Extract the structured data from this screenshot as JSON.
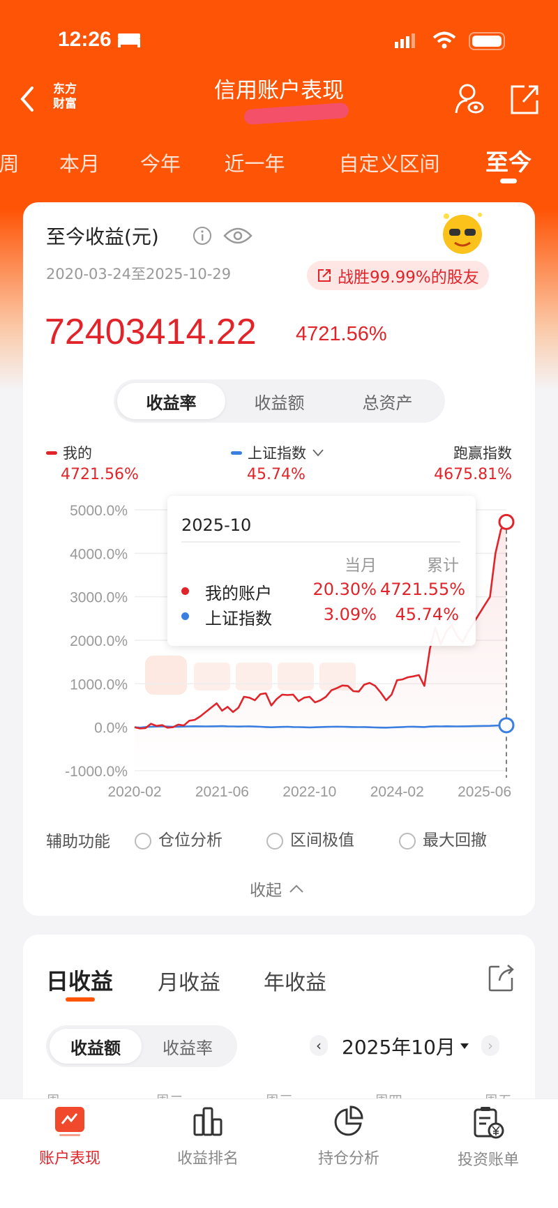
{
  "status_bar": {
    "time": "12:26"
  },
  "header": {
    "title": "信用账户表现",
    "logo_text": "东方财富"
  },
  "period_tabs": [
    {
      "label": "周"
    },
    {
      "label": "本月"
    },
    {
      "label": "今年"
    },
    {
      "label": "近一年"
    },
    {
      "label": "自定义区间"
    },
    {
      "label": "至今",
      "active": true
    }
  ],
  "summary": {
    "title": "至今收益(元)",
    "date_range": "2020-03-24至2025-10-29",
    "badge": "战胜99.99%的股友",
    "amount": "72403414.22",
    "rate": "4721.56%"
  },
  "chart_mode_tabs": [
    {
      "label": "收益率",
      "active": true
    },
    {
      "label": "收益额"
    },
    {
      "label": "总资产"
    }
  ],
  "legend": {
    "mine_label": "我的",
    "mine_value": "4721.56%",
    "index_label": "上证指数",
    "index_value": "45.74%",
    "beat_label": "跑赢指数",
    "beat_value": "4675.81%"
  },
  "tooltip": {
    "date": "2025-10",
    "col_month": "当月",
    "col_total": "累计",
    "rows": [
      {
        "name": "我的账户",
        "month": "20.30%",
        "total": "4721.55%",
        "color": "#e0242a"
      },
      {
        "name": "上证指数",
        "month": "3.09%",
        "total": "45.74%",
        "color": "#3a7fe0"
      }
    ]
  },
  "chart_data": {
    "type": "line",
    "ylim": [
      -1000,
      5000
    ],
    "y_ticks": [
      "5000.0%",
      "4000.0%",
      "3000.0%",
      "2000.0%",
      "1000.0%",
      "0.0%",
      "-1000.0%"
    ],
    "y_tick_values": [
      5000,
      4000,
      3000,
      2000,
      1000,
      0,
      -1000
    ],
    "x_ticks": [
      "2020-02",
      "2021-06",
      "2022-10",
      "2024-02",
      "2025-06"
    ],
    "x": [
      "2020-02",
      "2020-03",
      "2020-04",
      "2020-05",
      "2020-06",
      "2020-07",
      "2020-08",
      "2020-09",
      "2020-10",
      "2020-11",
      "2020-12",
      "2021-01",
      "2021-02",
      "2021-03",
      "2021-04",
      "2021-05",
      "2021-06",
      "2021-07",
      "2021-08",
      "2021-09",
      "2021-10",
      "2021-11",
      "2021-12",
      "2022-01",
      "2022-02",
      "2022-03",
      "2022-04",
      "2022-05",
      "2022-06",
      "2022-07",
      "2022-08",
      "2022-09",
      "2022-10",
      "2022-11",
      "2022-12",
      "2023-01",
      "2023-02",
      "2023-03",
      "2023-04",
      "2023-05",
      "2023-06",
      "2023-07",
      "2023-08",
      "2023-09",
      "2023-10",
      "2023-11",
      "2023-12",
      "2024-01",
      "2024-02",
      "2024-03",
      "2024-04",
      "2024-05",
      "2024-06",
      "2024-07",
      "2024-08",
      "2024-09",
      "2024-10",
      "2024-11",
      "2024-12",
      "2025-01",
      "2025-02",
      "2025-03",
      "2025-04",
      "2025-05",
      "2025-06",
      "2025-07",
      "2025-08",
      "2025-09",
      "2025-10"
    ],
    "grid": true,
    "series": [
      {
        "name": "我的账户",
        "color": "#e0242a",
        "values": [
          0,
          -30,
          -20,
          80,
          30,
          50,
          -10,
          0,
          60,
          40,
          150,
          170,
          250,
          350,
          450,
          550,
          380,
          470,
          350,
          450,
          700,
          680,
          620,
          760,
          780,
          500,
          650,
          750,
          740,
          750,
          600,
          680,
          700,
          570,
          620,
          700,
          850,
          900,
          960,
          950,
          830,
          820,
          980,
          1020,
          950,
          800,
          620,
          750,
          1080,
          1100,
          1150,
          1170,
          1200,
          950,
          1800,
          2300,
          1900,
          2200,
          2350,
          2100,
          1950,
          2200,
          2400,
          2600,
          2800,
          3000,
          4000,
          4550,
          4721.55
        ]
      },
      {
        "name": "上证指数",
        "color": "#3a7fe0",
        "values": [
          0,
          -10,
          5,
          10,
          15,
          20,
          15,
          10,
          12,
          15,
          20,
          22,
          20,
          18,
          20,
          22,
          25,
          20,
          18,
          15,
          18,
          20,
          15,
          10,
          5,
          0,
          5,
          8,
          10,
          5,
          2,
          0,
          -5,
          0,
          5,
          8,
          10,
          12,
          10,
          8,
          5,
          3,
          5,
          0,
          -5,
          -8,
          -10,
          -5,
          0,
          5,
          10,
          12,
          8,
          5,
          15,
          20,
          18,
          22,
          20,
          18,
          20,
          22,
          25,
          28,
          30,
          32,
          38,
          42,
          45.74
        ]
      }
    ]
  },
  "aux": {
    "label": "辅助功能",
    "options": [
      "仓位分析",
      "区间极值",
      "最大回撤"
    ],
    "collapse": "收起"
  },
  "earnings": {
    "tabs": [
      {
        "label": "日收益",
        "active": true
      },
      {
        "label": "月收益"
      },
      {
        "label": "年收益"
      }
    ],
    "mode_tabs": [
      {
        "label": "收益额",
        "active": true
      },
      {
        "label": "收益率"
      }
    ],
    "month": "2025年10月",
    "weekdays": [
      "周一",
      "周二",
      "周三",
      "周四",
      "周五"
    ]
  },
  "bottom_nav": [
    {
      "label": "账户表现",
      "active": true,
      "icon": "chart-icon"
    },
    {
      "label": "收益排名",
      "icon": "bar-chart-icon"
    },
    {
      "label": "持仓分析",
      "icon": "pie-chart-icon"
    },
    {
      "label": "投资账单",
      "icon": "bill-icon"
    }
  ],
  "colors": {
    "brand": "#fe5406",
    "up": "#e0242a",
    "index": "#3a7fe0"
  }
}
